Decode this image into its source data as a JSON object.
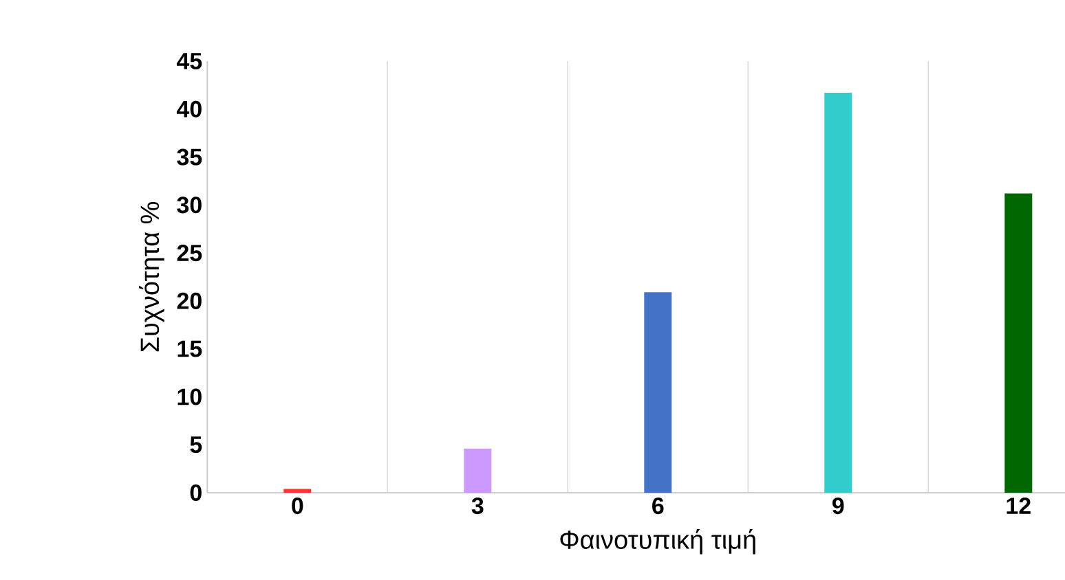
{
  "chart_data": {
    "type": "bar",
    "xlabel": "Φαινοτυπική τιμή",
    "ylabel": "Συχνότητα %",
    "categories": [
      "0",
      "3",
      "6",
      "9",
      "12"
    ],
    "values": [
      0.4,
      4.6,
      20.9,
      41.7,
      31.2
    ],
    "colors": [
      "#ff3333",
      "#cc99ff",
      "#4472c4",
      "#33cccc",
      "#006600"
    ],
    "ylim": [
      0,
      45
    ],
    "yticks": [
      0,
      5,
      10,
      15,
      20,
      25,
      30,
      35,
      40,
      45
    ],
    "grid": "x"
  }
}
